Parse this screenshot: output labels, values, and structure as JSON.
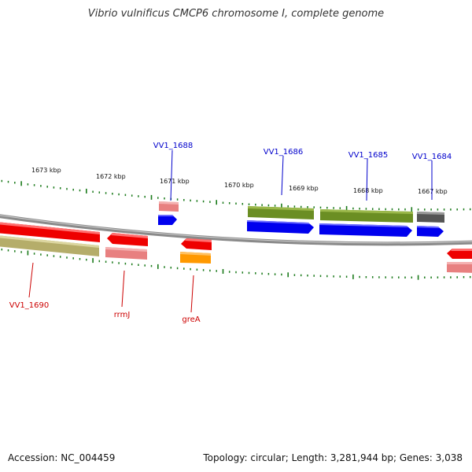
{
  "title": "Vibrio vulnificus CMCP6 chromosome I, complete genome",
  "accession": "Accession: NC_004459",
  "topology": "Topology: circular; Length: 3,281,944 bp; Genes: 3,038",
  "scale_labels": [
    "1673 kbp",
    "1672 kbp",
    "1671 kbp",
    "1670 kbp",
    "1669 kbp",
    "1668 kbp",
    "1667 kbp"
  ],
  "gene_labels": {
    "vv1_1688": "VV1_1688",
    "vv1_1686": "VV1_1686",
    "vv1_1685": "VV1_1685",
    "vv1_1684": "VV1_1684",
    "vv1_1690": "VV1_1690",
    "rrmj": "rrmJ",
    "grea": "greA"
  },
  "colors": {
    "forward_label": "#0000cc",
    "reverse_label": "#cc0000",
    "backbone": "#888888",
    "ticks": "#1a7a1a",
    "cds_blue": "#0000ee",
    "cds_red": "#ee0000",
    "gene_olive": "#6b8e23",
    "gene_khaki": "#b5ad6a",
    "gene_pink": "#e88080",
    "gene_orange": "#ff9900",
    "gene_gray": "#555555"
  }
}
